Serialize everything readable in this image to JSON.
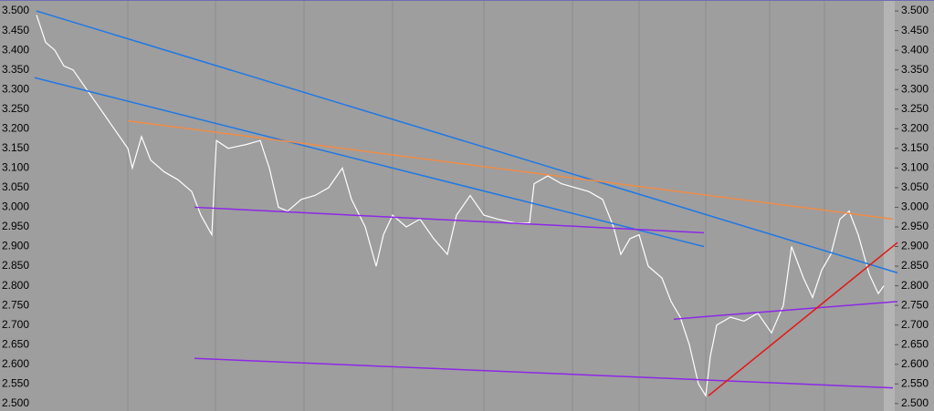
{
  "chart_data": {
    "type": "line",
    "x": [
      0,
      10,
      20,
      30,
      40,
      55,
      70,
      85,
      100,
      105,
      115,
      125,
      140,
      155,
      170,
      180,
      192,
      197,
      210,
      230,
      245,
      255,
      265,
      275,
      290,
      305,
      320,
      335,
      345,
      360,
      372,
      380,
      390,
      405,
      420,
      435,
      450,
      460,
      475,
      490,
      505,
      525,
      540,
      545,
      560,
      575,
      590,
      605,
      620,
      632,
      640,
      650,
      660,
      670,
      685,
      695,
      705,
      715,
      725,
      733,
      738,
      745,
      760,
      775,
      790,
      805,
      818,
      827,
      840,
      850,
      860,
      870,
      880,
      890,
      900,
      912,
      922,
      928
    ],
    "xlim": [
      -40,
      928
    ],
    "series": [
      {
        "color": "#ffffff",
        "values": [
          3.49,
          3.42,
          3.4,
          3.36,
          3.35,
          3.3,
          3.25,
          3.2,
          3.15,
          3.1,
          3.18,
          3.12,
          3.09,
          3.07,
          3.04,
          2.98,
          2.93,
          3.17,
          3.15,
          3.16,
          3.17,
          3.1,
          3.0,
          2.99,
          3.02,
          3.03,
          3.05,
          3.1,
          3.02,
          2.95,
          2.85,
          2.93,
          2.98,
          2.95,
          2.97,
          2.92,
          2.88,
          2.98,
          3.03,
          2.98,
          2.97,
          2.96,
          2.96,
          3.06,
          3.08,
          3.06,
          3.05,
          3.04,
          3.02,
          2.95,
          2.88,
          2.92,
          2.93,
          2.85,
          2.82,
          2.76,
          2.72,
          2.65,
          2.55,
          2.52,
          2.62,
          2.7,
          2.72,
          2.71,
          2.73,
          2.68,
          2.75,
          2.9,
          2.82,
          2.77,
          2.84,
          2.88,
          2.97,
          2.99,
          2.93,
          2.83,
          2.78,
          2.8
        ]
      }
    ],
    "trendlines": [
      {
        "color": "#1e78e6",
        "x": [
          0,
          943
        ],
        "values": [
          3.5,
          2.833
        ]
      },
      {
        "color": "#1e78e6",
        "x": [
          -2,
          731
        ],
        "values": [
          3.33,
          2.9
        ]
      },
      {
        "color": "#f08c46",
        "x": [
          100,
          938
        ],
        "values": [
          3.22,
          2.97
        ]
      },
      {
        "color": "#8c28e6",
        "x": [
          173,
          731
        ],
        "values": [
          3.0,
          2.935
        ]
      },
      {
        "color": "#8c28e6",
        "x": [
          698,
          943
        ],
        "values": [
          2.715,
          2.76
        ]
      },
      {
        "color": "#8c28e6",
        "x": [
          173,
          938
        ],
        "values": [
          2.615,
          2.54
        ]
      },
      {
        "color": "#e61414",
        "x": [
          736,
          943
        ],
        "values": [
          2.52,
          2.91
        ]
      }
    ],
    "ylim": [
      2.481,
      3.528
    ],
    "yticks": [
      {
        "value": 3.5,
        "label": "3.500"
      },
      {
        "value": 3.45,
        "label": "3.450"
      },
      {
        "value": 3.4,
        "label": "3.400"
      },
      {
        "value": 3.35,
        "label": "3.350"
      },
      {
        "value": 3.3,
        "label": "3.300"
      },
      {
        "value": 3.25,
        "label": "3.250"
      },
      {
        "value": 3.2,
        "label": "3.200"
      },
      {
        "value": 3.15,
        "label": "3.150"
      },
      {
        "value": 3.1,
        "label": "3.100"
      },
      {
        "value": 3.05,
        "label": "3.050"
      },
      {
        "value": 3.0,
        "label": "3.000"
      },
      {
        "value": 2.95,
        "label": "2.950"
      },
      {
        "value": 2.9,
        "label": "2.900"
      },
      {
        "value": 2.85,
        "label": "2.850"
      },
      {
        "value": 2.8,
        "label": "2.800"
      },
      {
        "value": 2.75,
        "label": "2.750"
      },
      {
        "value": 2.7,
        "label": "2.700"
      },
      {
        "value": 2.65,
        "label": "2.650"
      },
      {
        "value": 2.6,
        "label": "2.600"
      },
      {
        "value": 2.55,
        "label": "2.550"
      },
      {
        "value": 2.5,
        "label": "2.500"
      }
    ]
  }
}
